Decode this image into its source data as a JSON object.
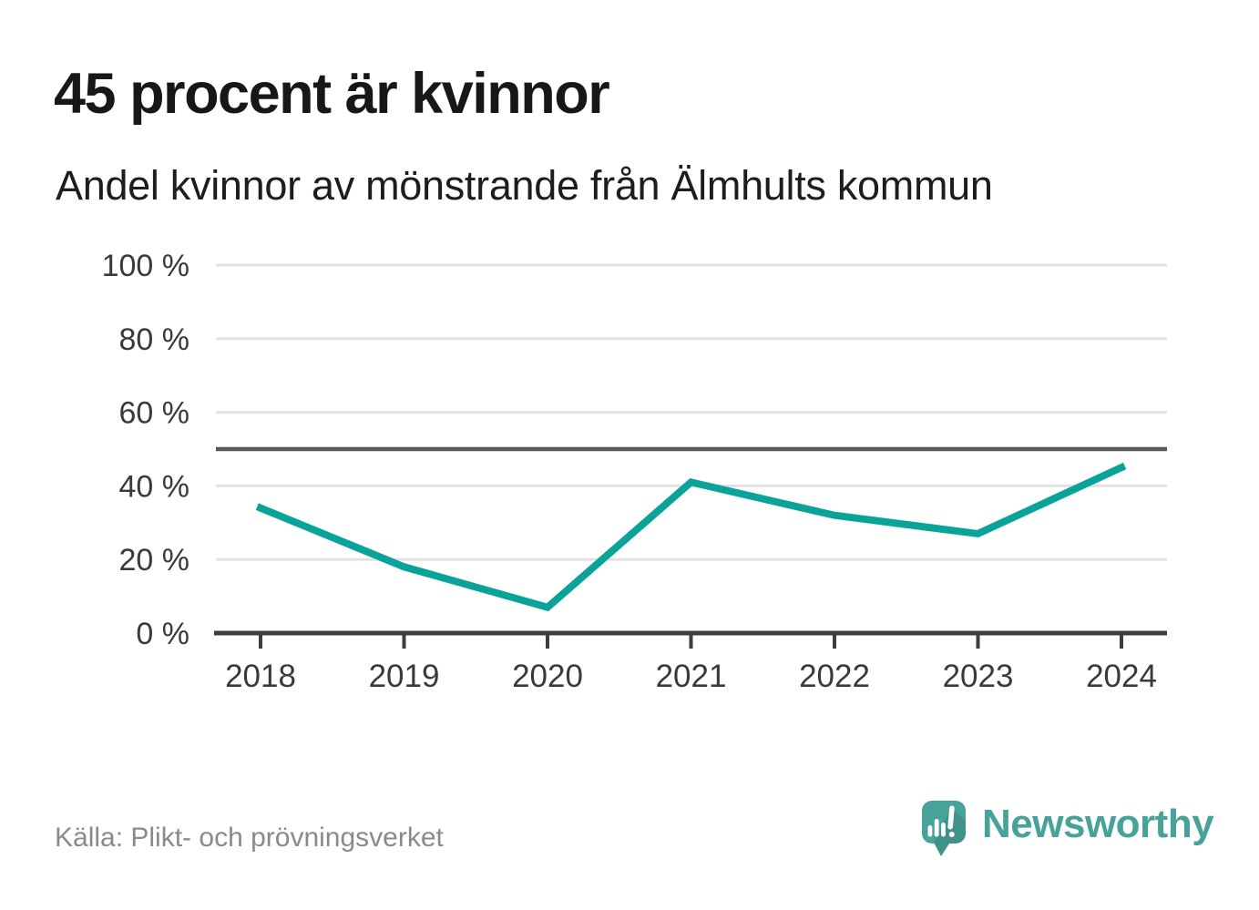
{
  "header": {
    "title": "45 procent är kvinnor",
    "subtitle": "Andel kvinnor av mönstrande från Älmhults kommun"
  },
  "chart_data": {
    "type": "line",
    "title": "45 procent är kvinnor",
    "subtitle": "Andel kvinnor av mönstrande från Älmhults kommun",
    "x": [
      2018,
      2019,
      2020,
      2021,
      2022,
      2023,
      2024
    ],
    "xtick_labels": [
      "2018",
      "2019",
      "2020",
      "2021",
      "2022",
      "2023",
      "2024"
    ],
    "series": [
      {
        "name": "Andel kvinnor av mönstrande",
        "values": [
          34,
          18,
          7,
          41,
          32,
          27,
          45
        ]
      }
    ],
    "unit": "%",
    "ylim": [
      0,
      100
    ],
    "yticks": [
      0,
      20,
      40,
      60,
      80,
      100
    ],
    "ytick_labels": [
      "0 %",
      "20 %",
      "40 %",
      "60 %",
      "80 %",
      "100 %"
    ],
    "reference_line": {
      "value": 50
    },
    "grid": true,
    "legend": false
  },
  "footer": {
    "source": "Källa: Plikt- och prövningsverket",
    "brand": "Newsworthy",
    "brand_icon": "speech-bubble-with-bar-chart-and-exclamation"
  },
  "colors": {
    "line": "#0aa39a",
    "grid": "#e2e2e2",
    "reference_line": "#56575c",
    "axis": "#3c3d3f",
    "axis_text": "#3a3a3a",
    "title_text": "#171717",
    "subtitle_text": "#1d1d1d",
    "source_text": "#8a8a8e",
    "brand_teal": "#47a29a",
    "brand_teal_dark": "#3a8d86",
    "background": "#ffffff"
  }
}
